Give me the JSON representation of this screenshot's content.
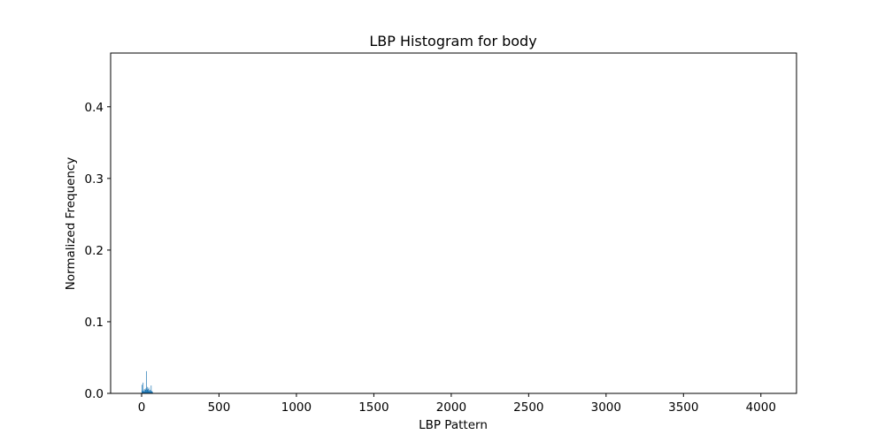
{
  "chart_data": {
    "type": "bar",
    "title": "LBP Histogram for body",
    "xlabel": "LBP Pattern",
    "ylabel": "Normalized Frequency",
    "xlim": [
      -200,
      4230
    ],
    "ylim": [
      0,
      0.475
    ],
    "xticks": [
      0,
      500,
      1000,
      1500,
      2000,
      2500,
      3000,
      3500,
      4000
    ],
    "yticks": [
      0.0,
      0.1,
      0.2,
      0.3,
      0.4
    ],
    "xtick_labels": [
      "0",
      "500",
      "1000",
      "1500",
      "2000",
      "2500",
      "3000",
      "3500",
      "4000"
    ],
    "ytick_labels": [
      "0.0",
      "0.1",
      "0.2",
      "0.3",
      "0.4"
    ],
    "grid": false,
    "bar_color": "#1f77b4",
    "series": [
      {
        "x": [
          0,
          2,
          4,
          6,
          8,
          10,
          12,
          14,
          16,
          18,
          20,
          22,
          24,
          26,
          28,
          30,
          32,
          34,
          36,
          38,
          40,
          42,
          44,
          46,
          48,
          50,
          52,
          54,
          56,
          58,
          60,
          62,
          64,
          66,
          68,
          70
        ],
        "values": [
          0.012,
          0.004,
          0.003,
          0.002,
          0.015,
          0.003,
          0.002,
          0.004,
          0.006,
          0.003,
          0.002,
          0.005,
          0.004,
          0.007,
          0.003,
          0.031,
          0.006,
          0.009,
          0.005,
          0.004,
          0.006,
          0.003,
          0.008,
          0.004,
          0.003,
          0.002,
          0.005,
          0.003,
          0.002,
          0.004,
          0.011,
          0.003,
          0.002,
          0.003,
          0.002,
          0.001
        ]
      }
    ]
  }
}
